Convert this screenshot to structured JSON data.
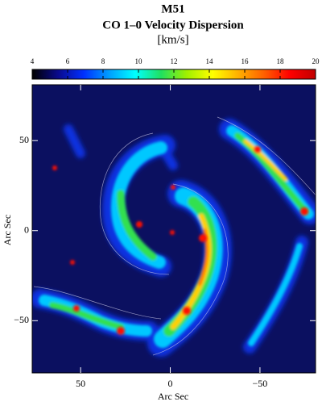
{
  "chart_data": {
    "type": "heatmap",
    "title": "M51",
    "subtitle": "CO 1–0 Velocity Dispersion",
    "colorbar_label": "[km/s]",
    "x_label": "Arc Sec",
    "y_label": "Arc Sec",
    "clim": [
      4,
      20
    ],
    "cticks": [
      4,
      6,
      8,
      10,
      12,
      14,
      16,
      18,
      20
    ],
    "colormap": [
      "#000000",
      "#0a0a8c",
      "#0030ff",
      "#00a0ff",
      "#00ffff",
      "#20e060",
      "#a0f000",
      "#ffff00",
      "#ffb000",
      "#ff6000",
      "#ff0000",
      "#c00000"
    ],
    "xlim": [
      77,
      -81
    ],
    "ylim": [
      -79,
      81
    ],
    "xticks": [
      50,
      0,
      {
        "value": -50,
        "label": "−50"
      }
    ],
    "yticks": [
      50,
      0,
      {
        "value": -50,
        "label": "−50"
      }
    ]
  }
}
